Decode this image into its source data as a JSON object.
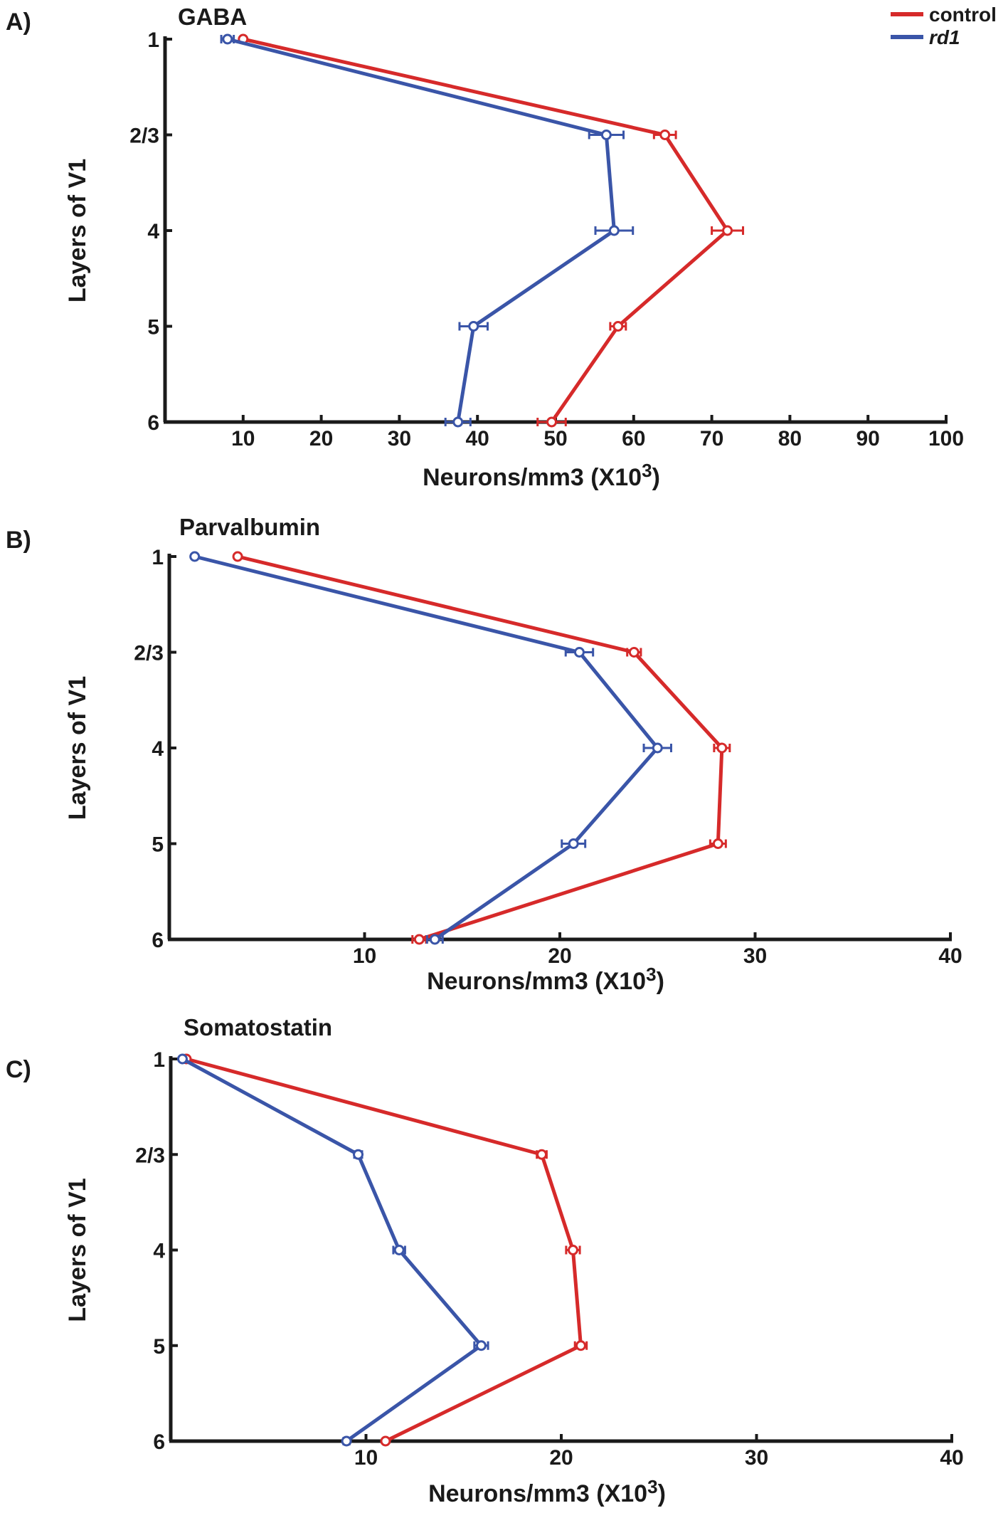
{
  "legend": {
    "entries": [
      {
        "label": "control",
        "italic": false,
        "color": "#d62a2a"
      },
      {
        "label": "rd1",
        "italic": true,
        "color": "#3a55a8"
      }
    ]
  },
  "chart_data": [
    {
      "type": "line",
      "panel_label": "A)",
      "title": "GABA",
      "xlabel": "Neurons/mm3 (X10",
      "xlabel_sup": "3",
      "xlabel_close": ")",
      "ylabel": "Layers of V1",
      "xlim": [
        0,
        100
      ],
      "x_ticks": [
        10,
        20,
        30,
        40,
        50,
        60,
        70,
        80,
        90,
        100
      ],
      "categories": [
        "1",
        "2/3",
        "4",
        "5",
        "6"
      ],
      "series": [
        {
          "name": "control",
          "color": "#d62a2a",
          "values": [
            10,
            64,
            72,
            58,
            49.5
          ],
          "errors": [
            0.3,
            1.4,
            2.0,
            1.0,
            1.8
          ]
        },
        {
          "name": "rd1",
          "color": "#3a55a8",
          "values": [
            8,
            56.5,
            57.5,
            39.5,
            37.5
          ],
          "errors": [
            0.8,
            2.2,
            2.4,
            1.8,
            1.6
          ]
        }
      ]
    },
    {
      "type": "line",
      "panel_label": "B)",
      "title": "Parvalbumin",
      "xlabel": "Neurons/mm3 (X10",
      "xlabel_sup": "3",
      "xlabel_close": ")",
      "ylabel": "Layers of V1",
      "xlim": [
        0,
        40
      ],
      "x_ticks": [
        10,
        20,
        30,
        40
      ],
      "categories": [
        "1",
        "2/3",
        "4",
        "5",
        "6"
      ],
      "series": [
        {
          "name": "control",
          "color": "#d62a2a",
          "values": [
            3.5,
            23.8,
            28.3,
            28.1,
            12.8
          ],
          "errors": [
            0.1,
            0.35,
            0.4,
            0.4,
            0.35
          ]
        },
        {
          "name": "rd1",
          "color": "#3a55a8",
          "values": [
            1.3,
            21,
            25,
            20.7,
            13.6
          ],
          "errors": [
            0.1,
            0.7,
            0.7,
            0.6,
            0.4
          ]
        }
      ]
    },
    {
      "type": "line",
      "panel_label": "C)",
      "title": "Somatostatin",
      "xlabel": "Neurons/mm3 (X10",
      "xlabel_sup": "3",
      "xlabel_close": ")",
      "ylabel": "Layers of V1",
      "xlim": [
        0,
        40
      ],
      "x_ticks": [
        10,
        20,
        30,
        40
      ],
      "categories": [
        "1",
        "2/3",
        "4",
        "5",
        "6"
      ],
      "series": [
        {
          "name": "control",
          "color": "#d62a2a",
          "values": [
            0.8,
            19,
            20.6,
            21,
            11
          ],
          "errors": [
            0.1,
            0.25,
            0.35,
            0.3,
            0.1
          ]
        },
        {
          "name": "rd1",
          "color": "#3a55a8",
          "values": [
            0.6,
            9.6,
            11.7,
            15.9,
            9
          ],
          "errors": [
            0.1,
            0.2,
            0.3,
            0.35,
            0.15
          ]
        }
      ]
    }
  ]
}
